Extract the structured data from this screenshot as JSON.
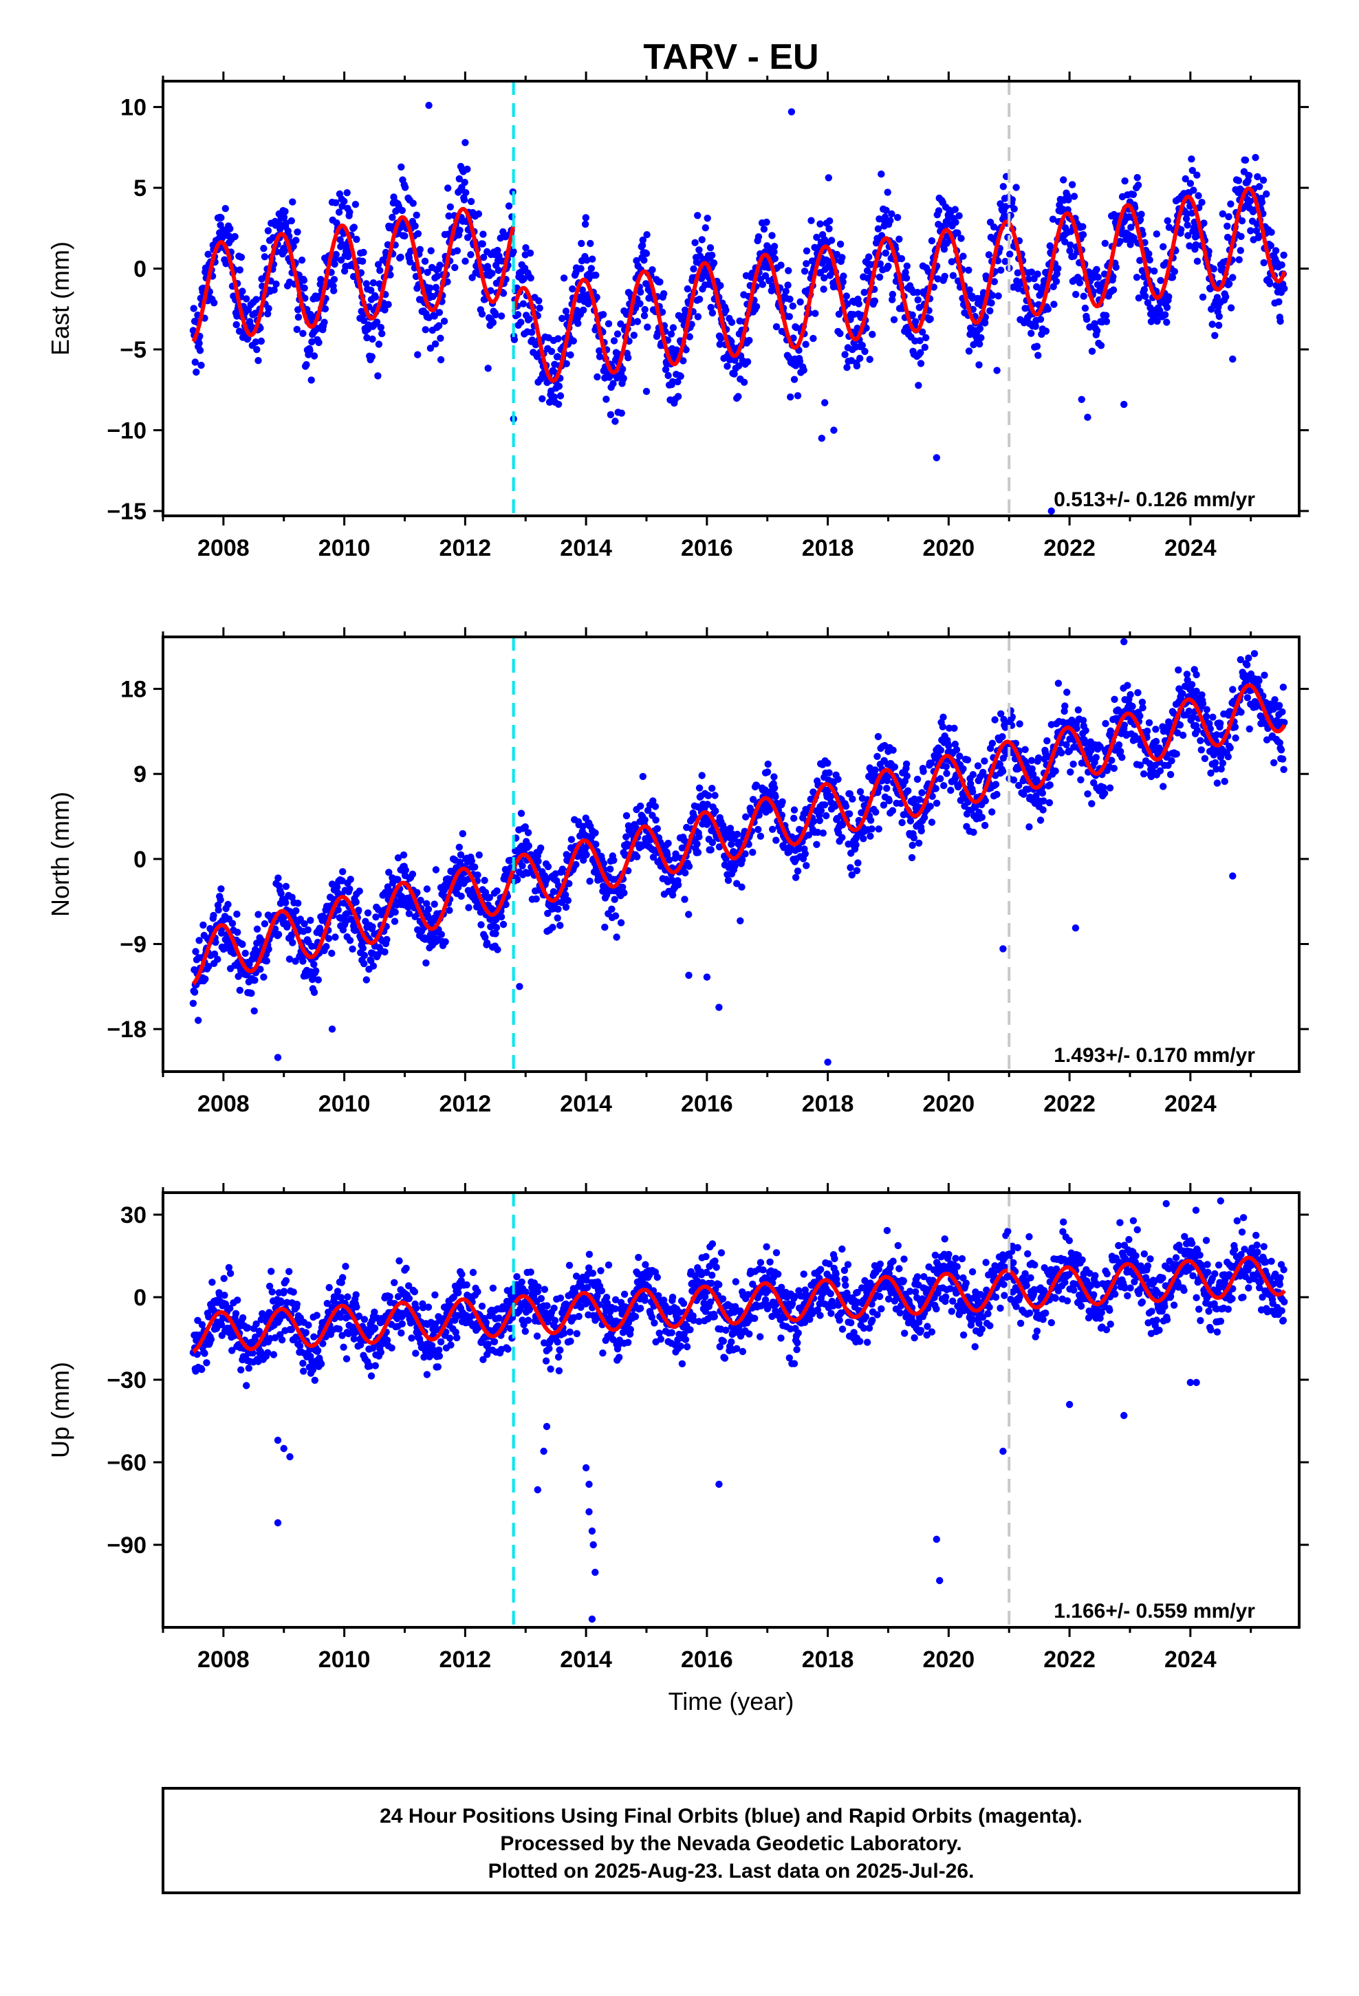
{
  "title": "TARV - EU",
  "xlabel": "Time (year)",
  "footer": {
    "lines": [
      "24 Hour Positions Using Final Orbits (blue) and Rapid Orbits (magenta).",
      "Processed by the Nevada Geodetic Laboratory.",
      "Plotted on 2025-Aug-23. Last data on 2025-Jul-26."
    ]
  },
  "colors": {
    "final_orbits": "#0000ff",
    "rapid_orbits": "#ff00ff",
    "model_fit": "#ff0000",
    "event_line": "#00e5ee",
    "reference_line": "#c8c8c8",
    "frame": "#000000"
  },
  "chart_data": [
    {
      "type": "scatter",
      "component": "east",
      "ylabel": "East (mm)",
      "xlim": [
        2007.0,
        2025.8
      ],
      "ylim": [
        -15.3,
        11.6
      ],
      "yticks": [
        10,
        5,
        0,
        -5,
        -10,
        -15
      ],
      "xticks": [
        2008,
        2010,
        2012,
        2014,
        2016,
        2018,
        2020,
        2022,
        2024
      ],
      "rate_text": "0.513+/- 0.126 mm/yr",
      "event_lines": [
        {
          "x": 2012.8,
          "style": "dashed",
          "color": "cyan"
        },
        {
          "x": 2021.0,
          "style": "dashed",
          "color": "gray"
        }
      ],
      "model": {
        "start": 2007.5,
        "end": 2025.56,
        "base_at_start": -1.6,
        "rate": 0.513,
        "amplitude": 3.0,
        "offsets": [
          {
            "x": 2012.8,
            "jump": -5.4
          }
        ]
      },
      "scatter_noise": 1.4,
      "outliers": [
        [
          2011.4,
          10.1
        ],
        [
          2012.0,
          7.8
        ],
        [
          2017.4,
          9.7
        ],
        [
          2017.9,
          -10.5
        ],
        [
          2017.95,
          -8.3
        ],
        [
          2018.1,
          -10.0
        ],
        [
          2019.8,
          -11.7
        ],
        [
          2020.8,
          -6.3
        ],
        [
          2021.7,
          -15.0
        ],
        [
          2022.2,
          -8.1
        ],
        [
          2022.3,
          -9.2
        ],
        [
          2022.9,
          -8.4
        ],
        [
          2024.7,
          -5.6
        ],
        [
          2013.5,
          -7.0
        ],
        [
          2015.0,
          -7.6
        ],
        [
          2012.8,
          -9.3
        ]
      ]
    },
    {
      "type": "scatter",
      "component": "north",
      "ylabel": "North (mm)",
      "xlim": [
        2007.0,
        2025.8
      ],
      "ylim": [
        -22.5,
        23.5
      ],
      "yticks": [
        18,
        9,
        0,
        -9,
        -18
      ],
      "xticks": [
        2008,
        2010,
        2012,
        2014,
        2016,
        2018,
        2020,
        2022,
        2024
      ],
      "rate_text": "1.493+/- 0.170 mm/yr",
      "event_lines": [
        {
          "x": 2012.8,
          "style": "dashed",
          "color": "cyan"
        },
        {
          "x": 2021.0,
          "style": "dashed",
          "color": "gray"
        }
      ],
      "model": {
        "start": 2007.5,
        "end": 2025.56,
        "base_at_start": -10.5,
        "rate": 1.493,
        "amplitude": 2.8,
        "offsets": []
      },
      "scatter_noise": 1.8,
      "outliers": [
        [
          2008.9,
          -21.0
        ],
        [
          2009.8,
          -18.0
        ],
        [
          2012.9,
          -13.5
        ],
        [
          2015.7,
          -12.3
        ],
        [
          2016.2,
          -15.7
        ],
        [
          2018.0,
          -21.5
        ],
        [
          2020.9,
          -9.5
        ],
        [
          2022.1,
          -7.3
        ],
        [
          2022.9,
          23.0
        ],
        [
          2023.8,
          20.0
        ],
        [
          2024.1,
          19.5
        ],
        [
          2024.7,
          -1.8
        ],
        [
          2016.0,
          -12.5
        ]
      ]
    },
    {
      "type": "scatter",
      "component": "up",
      "ylabel": "Up (mm)",
      "xlim": [
        2007.0,
        2025.8
      ],
      "ylim": [
        -120.0,
        38.0
      ],
      "yticks": [
        30,
        0,
        -30,
        -60,
        -90
      ],
      "xticks": [
        2008,
        2010,
        2012,
        2014,
        2016,
        2018,
        2020,
        2022,
        2024
      ],
      "rate_text": "1.166+/- 0.559 mm/yr",
      "event_lines": [
        {
          "x": 2012.8,
          "style": "dashed",
          "color": "cyan"
        },
        {
          "x": 2021.0,
          "style": "dashed",
          "color": "gray"
        }
      ],
      "model": {
        "start": 2007.5,
        "end": 2025.56,
        "base_at_start": -13.0,
        "rate": 1.166,
        "amplitude": 7.0,
        "offsets": []
      },
      "scatter_noise": 6.0,
      "outliers": [
        [
          2008.9,
          -52
        ],
        [
          2009.0,
          -55
        ],
        [
          2009.1,
          -58
        ],
        [
          2008.9,
          -82
        ],
        [
          2013.2,
          -70
        ],
        [
          2013.3,
          -56
        ],
        [
          2013.35,
          -47
        ],
        [
          2014.0,
          -62
        ],
        [
          2014.05,
          -68
        ],
        [
          2014.1,
          -85
        ],
        [
          2014.12,
          -90
        ],
        [
          2014.15,
          -100
        ],
        [
          2014.1,
          -117
        ],
        [
          2014.05,
          -78
        ],
        [
          2016.2,
          -68
        ],
        [
          2019.8,
          -88
        ],
        [
          2019.85,
          -103
        ],
        [
          2020.9,
          -56
        ],
        [
          2022.0,
          -39
        ],
        [
          2022.9,
          -43
        ],
        [
          2024.0,
          -31
        ],
        [
          2024.1,
          -31
        ],
        [
          2024.5,
          35
        ],
        [
          2023.6,
          34
        ]
      ]
    }
  ]
}
